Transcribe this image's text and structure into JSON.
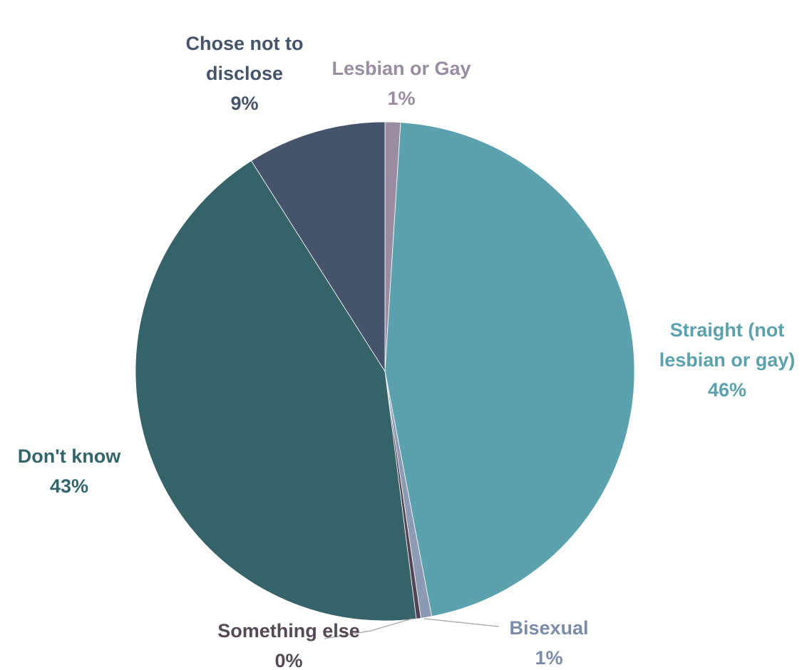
{
  "chart_data": {
    "type": "pie",
    "start_angle_deg": 0,
    "direction": "clockwise",
    "slices": [
      {
        "name": "Lesbian or Gay",
        "value": 1,
        "label_lines": [
          "Lesbian or Gay",
          "1%"
        ],
        "color": "#9A8DA2",
        "label_color": "#9A8DA2"
      },
      {
        "name": "Straight (not lesbian or gay)",
        "value": 46,
        "label_lines": [
          "Straight (not",
          "lesbian or gay)",
          "46%"
        ],
        "color": "#5BA2AE",
        "label_color": "#5BA2AE"
      },
      {
        "name": "Bisexual",
        "value": 0.7,
        "label_lines": [
          "Bisexual",
          "1%"
        ],
        "color": "#8C9BB3",
        "label_color": "#7B8CA9"
      },
      {
        "name": "Something else",
        "value": 0.3,
        "label_lines": [
          "Something else",
          "0%"
        ],
        "color": "#514553",
        "label_color": "#554955"
      },
      {
        "name": "Don't know",
        "value": 43,
        "label_lines": [
          "Don't know",
          "43%"
        ],
        "color": "#356369",
        "label_color": "#33666B"
      },
      {
        "name": "Chose not to disclose",
        "value": 9,
        "label_lines": [
          "Chose not to",
          "disclose",
          "9%"
        ],
        "color": "#45546A",
        "label_color": "#45546A"
      }
    ],
    "title": "",
    "legend": "none",
    "data_labels": "category name and percentage"
  }
}
